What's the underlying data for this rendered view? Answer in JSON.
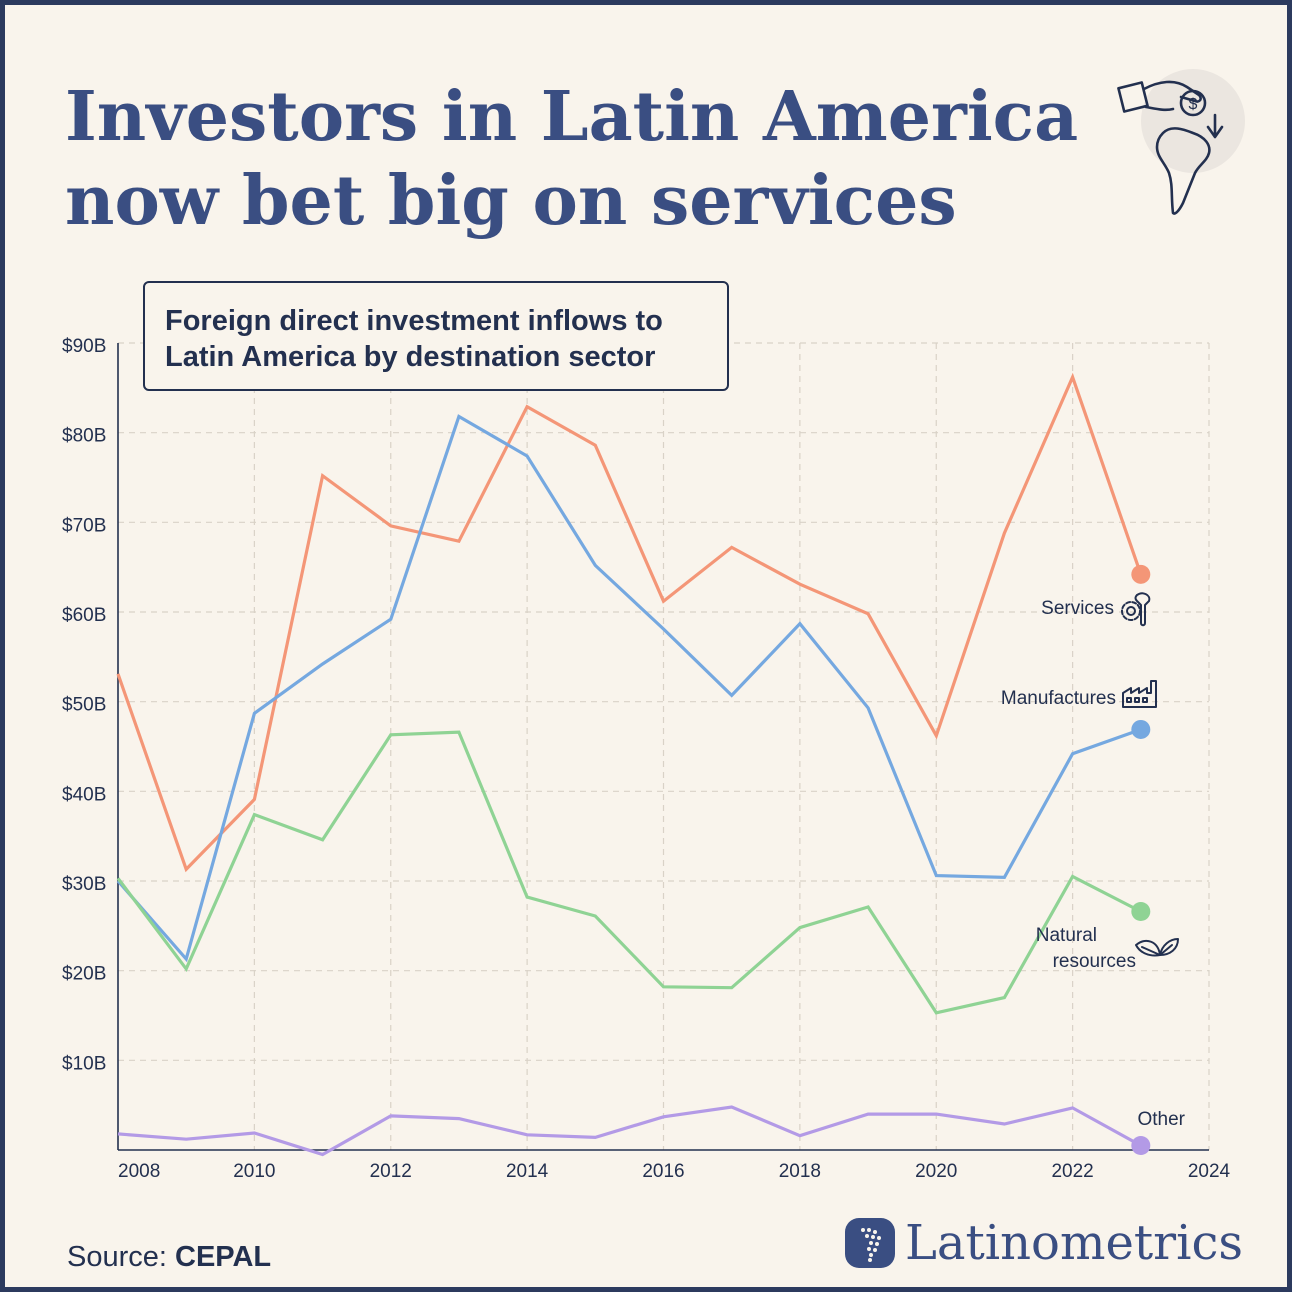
{
  "title_line1": "Investors in Latin America",
  "title_line2": "now bet big on services",
  "subtitle_line1": "Foreign direct investment inflows to",
  "subtitle_line2": "Latin America by destination sector",
  "source_label": "Source:",
  "source_name": "CEPAL",
  "brand_name": "Latinometrics",
  "colors": {
    "background": "#f9f4ec",
    "frame": "#2c3a5e",
    "title": "#3a4e82",
    "text": "#23304f",
    "grid": "#d9d2c7"
  },
  "icons": {
    "header": "hand-coin-latin-america-icon",
    "services": "gear-wrench-icon",
    "manufactures": "factory-icon",
    "natural_resources": "leaf-icon",
    "brand": "latin-america-map-logo-icon"
  },
  "chart_data": {
    "type": "line",
    "x": [
      2008,
      2009,
      2010,
      2011,
      2012,
      2013,
      2014,
      2015,
      2016,
      2017,
      2018,
      2019,
      2020,
      2021,
      2022,
      2023
    ],
    "xlim": [
      2008,
      2024
    ],
    "ylim": [
      0,
      90
    ],
    "x_ticks": [
      2008,
      2010,
      2012,
      2014,
      2016,
      2018,
      2020,
      2022,
      2024
    ],
    "x_tick_labels": [
      "2008",
      "2010",
      "2012",
      "2014",
      "2016",
      "2018",
      "2020",
      "2022",
      "2024"
    ],
    "y_ticks": [
      10,
      20,
      30,
      40,
      50,
      60,
      70,
      80,
      90
    ],
    "y_tick_labels": [
      "$10B",
      "$20B",
      "$30B",
      "$40B",
      "$50B",
      "$60B",
      "$70B",
      "$80B",
      "$90B"
    ],
    "grid": true,
    "legend": "direct labels at line ends",
    "series": [
      {
        "name": "Services",
        "color": "#f49677",
        "values": [
          53.1,
          31.3,
          39.1,
          75.2,
          69.6,
          67.9,
          82.9,
          78.6,
          61.2,
          67.2,
          63.1,
          59.8,
          46.2,
          68.8,
          86.2,
          64.2
        ]
      },
      {
        "name": "Manufactures",
        "color": "#75a8e0",
        "values": [
          30.0,
          21.3,
          48.7,
          54.2,
          59.2,
          81.8,
          77.4,
          65.2,
          58.1,
          50.7,
          58.7,
          49.3,
          30.6,
          30.4,
          44.2,
          46.9
        ]
      },
      {
        "name": "Natural resources",
        "label_lines": [
          "Natural",
          "resources"
        ],
        "color": "#8fd394",
        "values": [
          30.3,
          20.2,
          37.4,
          34.6,
          46.3,
          46.6,
          28.2,
          26.1,
          18.2,
          18.1,
          24.8,
          27.1,
          15.3,
          17.0,
          30.5,
          26.6
        ]
      },
      {
        "name": "Other",
        "color": "#b39ae6",
        "values": [
          1.8,
          1.2,
          1.9,
          -0.5,
          3.8,
          3.5,
          1.7,
          1.4,
          3.7,
          4.8,
          1.6,
          4.0,
          4.0,
          2.9,
          4.7,
          0.5
        ]
      }
    ]
  }
}
